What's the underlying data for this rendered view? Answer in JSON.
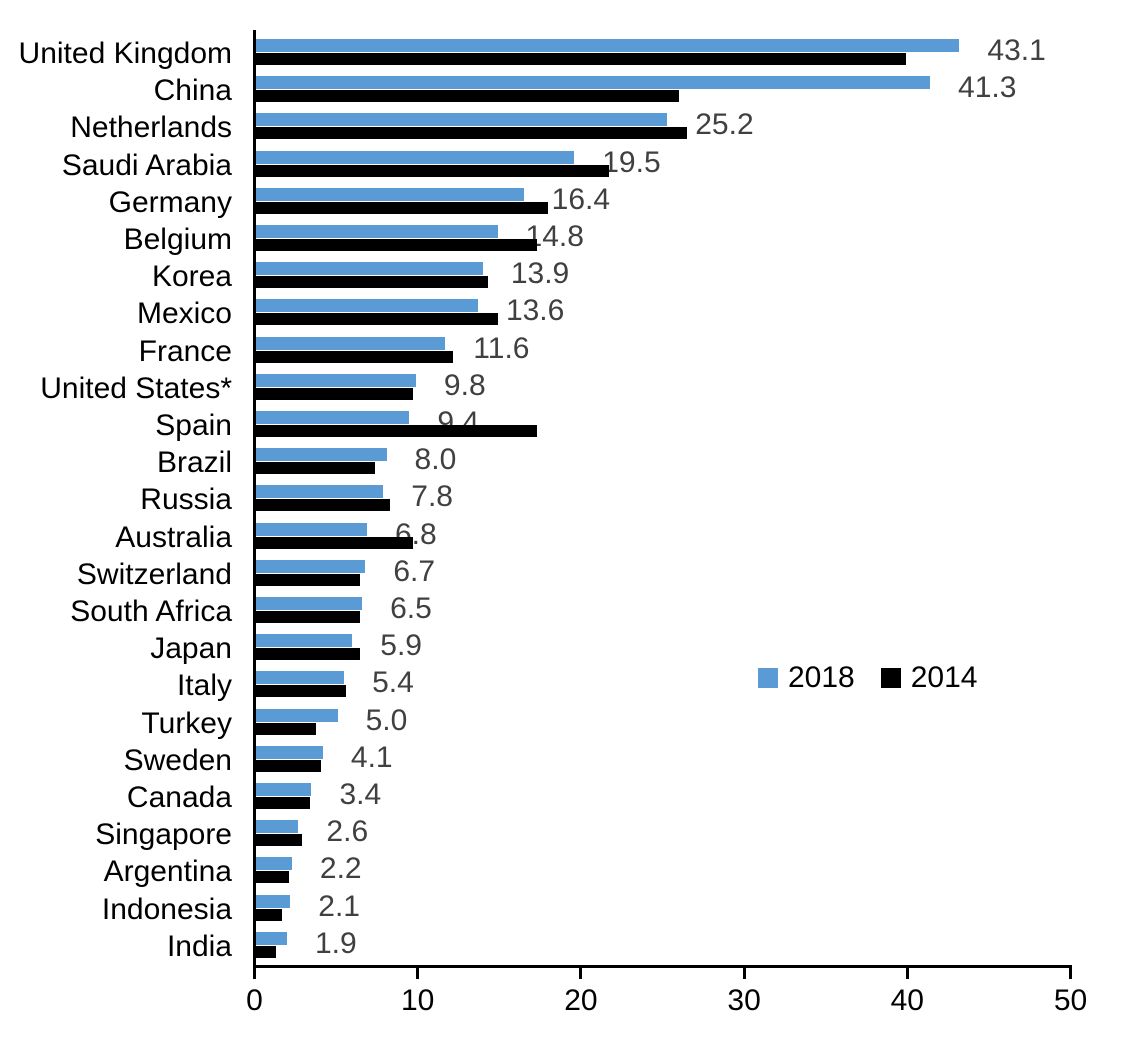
{
  "chart_data": {
    "type": "bar",
    "orientation": "horizontal",
    "title": "",
    "xlabel": "",
    "ylabel": "",
    "xlim": [
      0,
      50
    ],
    "x_ticks": [
      "0",
      "10",
      "20",
      "30",
      "40",
      "50"
    ],
    "grid": false,
    "legend_position": "middle-right",
    "categories": [
      "United Kingdom",
      "China",
      "Netherlands",
      "Saudi Arabia",
      "Germany",
      "Belgium",
      "Korea",
      "Mexico",
      "France",
      "United States*",
      "Spain",
      "Brazil",
      "Russia",
      "Australia",
      "Switzerland",
      "South Africa",
      "Japan",
      "Italy",
      "Turkey",
      "Sweden",
      "Canada",
      "Singapore",
      "Argentina",
      "Indonesia",
      "India"
    ],
    "series": [
      {
        "name": "2018",
        "color": "#5B9BD5",
        "values": [
          43.1,
          41.3,
          25.2,
          19.5,
          16.4,
          14.8,
          13.9,
          13.6,
          11.6,
          9.8,
          9.4,
          8.0,
          7.8,
          6.8,
          6.7,
          6.5,
          5.9,
          5.4,
          5.0,
          4.1,
          3.4,
          2.6,
          2.2,
          2.1,
          1.9
        ]
      },
      {
        "name": "2014",
        "color": "#000000",
        "values": [
          39.8,
          25.9,
          26.4,
          21.6,
          17.9,
          17.2,
          14.2,
          14.8,
          12.1,
          9.6,
          17.2,
          7.3,
          8.2,
          9.6,
          6.4,
          6.4,
          6.4,
          5.5,
          3.7,
          4.0,
          3.3,
          2.8,
          2.0,
          1.6,
          1.2
        ]
      }
    ],
    "data_labels": [
      "43.1",
      "41.3",
      "25.2",
      "19.5",
      "16.4",
      "14.8",
      "13.9",
      "13.6",
      "11.6",
      "9.8",
      "9.4",
      "8.0",
      "7.8",
      "6.8",
      "6.7",
      "6.5",
      "5.9",
      "5.4",
      "5.0",
      "4.1",
      "3.4",
      "2.6",
      "2.2",
      "2.1",
      "1.9"
    ],
    "data_label_series": "2018",
    "data_label_color": "#404040",
    "axis_color": "#000000"
  }
}
